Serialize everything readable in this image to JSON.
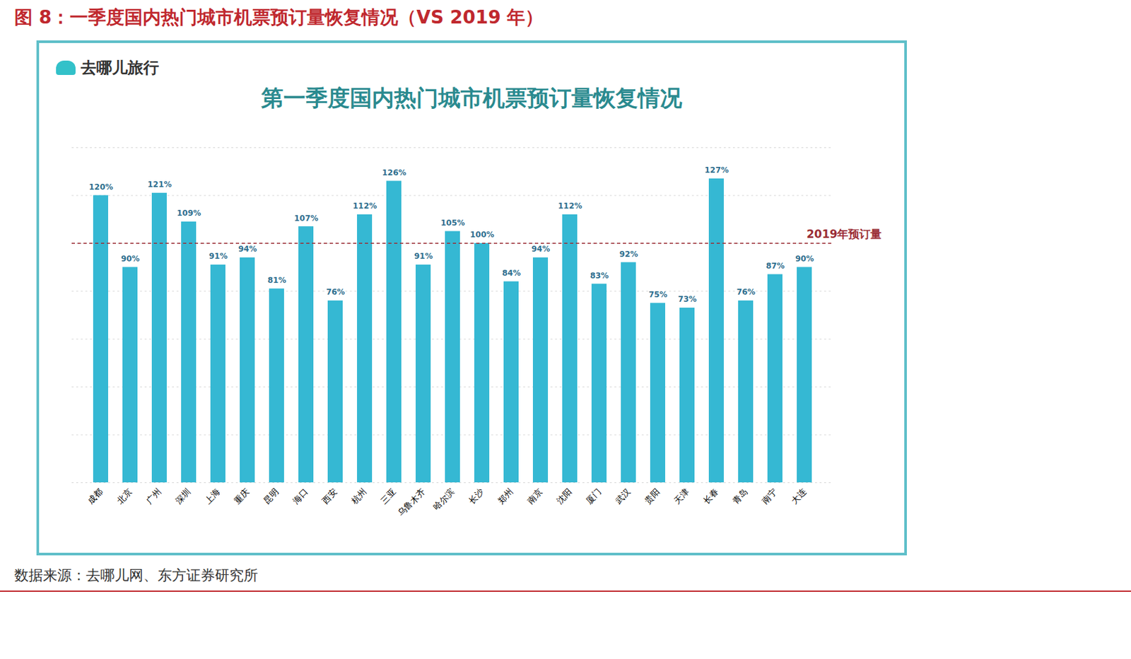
{
  "chart_data": {
    "type": "bar",
    "header": "图 8：一季度国内热门城市机票预订量恢复情况（VS 2019 年）",
    "brand": "去哪儿旅行",
    "title": "第一季度国内热门城市机票预订量恢复情况",
    "source": "数据来源：去哪儿网、东方证券研究所",
    "categories": [
      "成都",
      "北京",
      "广州",
      "深圳",
      "上海",
      "重庆",
      "昆明",
      "海口",
      "西安",
      "杭州",
      "三亚",
      "乌鲁木齐",
      "哈尔滨",
      "长沙",
      "郑州",
      "南京",
      "沈阳",
      "厦门",
      "武汉",
      "贵阳",
      "天津",
      "长春",
      "青岛",
      "南宁",
      "大连"
    ],
    "values": [
      120,
      90,
      121,
      109,
      91,
      94,
      81,
      107,
      76,
      112,
      126,
      91,
      105,
      100,
      84,
      94,
      112,
      83,
      92,
      75,
      73,
      127,
      76,
      87,
      90
    ],
    "value_labels": [
      "120%",
      "90%",
      "121%",
      "109%",
      "91%",
      "94%",
      "81%",
      "107%",
      "76%",
      "112%",
      "126%",
      "91%",
      "105%",
      "100%",
      "84%",
      "94%",
      "112%",
      "83%",
      "92%",
      "75%",
      "73%",
      "127%",
      "76%",
      "87%",
      "90%"
    ],
    "color": "#35b8d3",
    "ylim": [
      0,
      140
    ],
    "yticks": [
      0,
      20,
      40,
      60,
      80,
      100,
      120,
      140
    ],
    "grid": true,
    "data_labels": true,
    "tick_labels": "x",
    "reference_line": {
      "value": 100,
      "label": "2019年预订量",
      "color": "#9b2d35"
    }
  }
}
